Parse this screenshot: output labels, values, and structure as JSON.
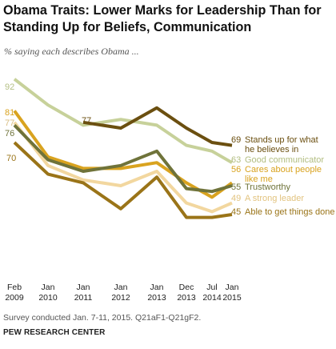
{
  "title": "Obama Traits: Lower Marks for Leadership Than for Standing Up for Beliefs, Communication",
  "subtitle": "% saying each describes Obama ...",
  "note": "Survey conducted Jan. 7-11, 2015. Q21aF1-Q21gF2.",
  "source": "PEW RESEARCH CENTER",
  "chart_data": {
    "type": "line",
    "x_categories": [
      {
        "line1": "Feb",
        "line2": "2009"
      },
      {
        "line1": "Jan",
        "line2": "2010"
      },
      {
        "line1": "Jan",
        "line2": "2011"
      },
      {
        "line1": "Jan",
        "line2": "2012"
      },
      {
        "line1": "Jan",
        "line2": "2013"
      },
      {
        "line1": "Dec",
        "line2": "2013"
      },
      {
        "line1": "Jul",
        "line2": "2014"
      },
      {
        "line1": "Jan",
        "line2": "2015"
      }
    ],
    "ylim": [
      40,
      95
    ],
    "grid": false,
    "legend": "labels at line ends",
    "series": [
      {
        "name": "Stands up for what he believes in",
        "label_lines": [
          "Stands up for what",
          "he believes in"
        ],
        "color": "#6b4f10",
        "values": [
          null,
          null,
          77,
          75,
          82,
          75,
          70,
          69
        ]
      },
      {
        "name": "Good communicator",
        "label_lines": [
          "Good communicator"
        ],
        "color": "#c7d19a",
        "values": [
          92,
          83,
          76,
          78,
          76,
          69,
          67,
          63
        ]
      },
      {
        "name": "Cares about people like me",
        "label_lines": [
          "Cares about people",
          "like me"
        ],
        "color": "#d9a31f",
        "values": [
          81,
          65,
          61,
          61,
          63,
          56,
          51,
          56
        ]
      },
      {
        "name": "Trustworthy",
        "label_lines": [
          "Trustworthy"
        ],
        "color": "#6f733a",
        "values": [
          76,
          64,
          60,
          62,
          67,
          54,
          53,
          55
        ]
      },
      {
        "name": "A strong leader",
        "label_lines": [
          "A strong leader"
        ],
        "color": "#f2d79f",
        "values": [
          77,
          62,
          57,
          55,
          60,
          49,
          46,
          49
        ]
      },
      {
        "name": "Able to get things done",
        "label_lines": [
          "Able to get things done"
        ],
        "color": "#9a7418",
        "values": [
          70,
          59,
          56,
          47,
          58,
          44,
          44,
          45
        ]
      }
    ],
    "annotations": [
      {
        "series": "Good communicator",
        "index": 0,
        "text": "92"
      },
      {
        "series": "Cares about people like me",
        "index": 0,
        "text": "81"
      },
      {
        "series": "A strong leader",
        "index": 0,
        "text": "77"
      },
      {
        "series": "Trustworthy",
        "index": 0,
        "text": "76"
      },
      {
        "series": "Able to get things done",
        "index": 0,
        "text": "70"
      },
      {
        "series": "Stands up for what he believes in",
        "index": 2,
        "text": "77"
      }
    ],
    "end_labels": [
      {
        "series": "Stands up for what he believes in",
        "text": "69"
      },
      {
        "series": "Good communicator",
        "text": "63"
      },
      {
        "series": "Cares about people like me",
        "text": "56"
      },
      {
        "series": "Trustworthy",
        "text": "55"
      },
      {
        "series": "A strong leader",
        "text": "49"
      },
      {
        "series": "Able to get things done",
        "text": "45"
      }
    ]
  }
}
